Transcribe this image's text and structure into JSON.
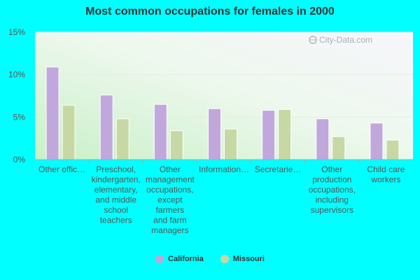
{
  "chart_data": {
    "type": "bar",
    "title": "Most common occupations for females in 2000",
    "xlabel": "",
    "ylabel": "",
    "ylim": [
      0,
      15
    ],
    "yticks": [
      "0%",
      "5%",
      "10%",
      "15%"
    ],
    "ytick_values": [
      0,
      5,
      10,
      15
    ],
    "categories": [
      [
        "Other offic…"
      ],
      [
        "Preschool,",
        "kindergarten,",
        "elementary,",
        "and middle",
        "school",
        "teachers"
      ],
      [
        "Other",
        "management",
        "occupations,",
        "except",
        "farmers",
        "and farm",
        "managers"
      ],
      [
        "Information…"
      ],
      [
        "Secretarie…"
      ],
      [
        "Other",
        "production",
        "occupations,",
        "including",
        "supervisors"
      ],
      [
        "Child care",
        "workers"
      ]
    ],
    "series": [
      {
        "name": "California",
        "values": [
          10.9,
          7.6,
          6.5,
          6.0,
          5.8,
          4.8,
          4.3
        ]
      },
      {
        "name": "Missouri",
        "values": [
          6.4,
          4.8,
          3.4,
          3.6,
          5.9,
          2.7,
          2.3
        ]
      }
    ],
    "colors": [
      "#c0a8dc",
      "#c6d8a4"
    ],
    "legend_position": "bottom",
    "grid": true
  },
  "watermark": "City-Data.com"
}
